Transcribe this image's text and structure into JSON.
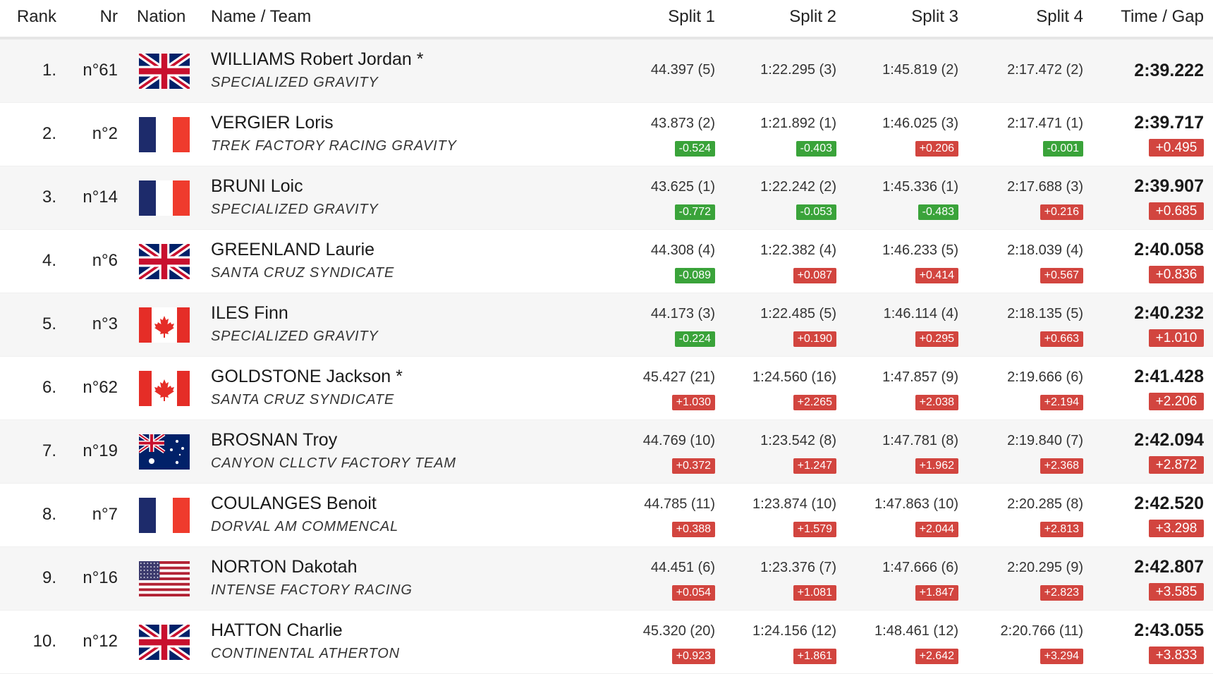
{
  "headers": {
    "rank": "Rank",
    "nr": "Nr",
    "nation": "Nation",
    "name_team": "Name / Team",
    "split1": "Split 1",
    "split2": "Split 2",
    "split3": "Split 3",
    "split4": "Split 4",
    "time_gap": "Time / Gap"
  },
  "colors": {
    "gain_badge": "#3aa33a",
    "loss_badge": "#d2453f",
    "row_stripe": "#f6f6f6"
  },
  "rows": [
    {
      "rank": "1.",
      "nr": "n°61",
      "flag": "gb-flag-icon",
      "name": "WILLIAMS Robert Jordan *",
      "team": "SPECIALIZED GRAVITY",
      "s1": "44.397 (5)",
      "s2": "1:22.295 (3)",
      "s3": "1:45.819 (2)",
      "s4": "2:17.472 (2)",
      "d1": "",
      "d2": "",
      "d3": "",
      "d4": "",
      "time": "2:39.222",
      "gap": ""
    },
    {
      "rank": "2.",
      "nr": "n°2",
      "flag": "fr-flag-icon",
      "name": "VERGIER Loris",
      "team": "TREK FACTORY RACING GRAVITY",
      "s1": "43.873 (2)",
      "s2": "1:21.892 (1)",
      "s3": "1:46.025 (3)",
      "s4": "2:17.471 (1)",
      "d1": "-0.524",
      "d2": "-0.403",
      "d3": "+0.206",
      "d4": "-0.001",
      "time": "2:39.717",
      "gap": "+0.495"
    },
    {
      "rank": "3.",
      "nr": "n°14",
      "flag": "fr-flag-icon",
      "name": "BRUNI Loic",
      "team": "SPECIALIZED GRAVITY",
      "s1": "43.625 (1)",
      "s2": "1:22.242 (2)",
      "s3": "1:45.336 (1)",
      "s4": "2:17.688 (3)",
      "d1": "-0.772",
      "d2": "-0.053",
      "d3": "-0.483",
      "d4": "+0.216",
      "time": "2:39.907",
      "gap": "+0.685"
    },
    {
      "rank": "4.",
      "nr": "n°6",
      "flag": "gb-flag-icon",
      "name": "GREENLAND Laurie",
      "team": "SANTA CRUZ SYNDICATE",
      "s1": "44.308 (4)",
      "s2": "1:22.382 (4)",
      "s3": "1:46.233 (5)",
      "s4": "2:18.039 (4)",
      "d1": "-0.089",
      "d2": "+0.087",
      "d3": "+0.414",
      "d4": "+0.567",
      "time": "2:40.058",
      "gap": "+0.836"
    },
    {
      "rank": "5.",
      "nr": "n°3",
      "flag": "ca-flag-icon",
      "name": "ILES Finn",
      "team": "SPECIALIZED GRAVITY",
      "s1": "44.173 (3)",
      "s2": "1:22.485 (5)",
      "s3": "1:46.114 (4)",
      "s4": "2:18.135 (5)",
      "d1": "-0.224",
      "d2": "+0.190",
      "d3": "+0.295",
      "d4": "+0.663",
      "time": "2:40.232",
      "gap": "+1.010"
    },
    {
      "rank": "6.",
      "nr": "n°62",
      "flag": "ca-flag-icon",
      "name": "GOLDSTONE Jackson *",
      "team": "SANTA CRUZ SYNDICATE",
      "s1": "45.427 (21)",
      "s2": "1:24.560 (16)",
      "s3": "1:47.857 (9)",
      "s4": "2:19.666 (6)",
      "d1": "+1.030",
      "d2": "+2.265",
      "d3": "+2.038",
      "d4": "+2.194",
      "time": "2:41.428",
      "gap": "+2.206"
    },
    {
      "rank": "7.",
      "nr": "n°19",
      "flag": "au-flag-icon",
      "name": "BROSNAN Troy",
      "team": "CANYON CLLCTV FACTORY TEAM",
      "s1": "44.769 (10)",
      "s2": "1:23.542 (8)",
      "s3": "1:47.781 (8)",
      "s4": "2:19.840 (7)",
      "d1": "+0.372",
      "d2": "+1.247",
      "d3": "+1.962",
      "d4": "+2.368",
      "time": "2:42.094",
      "gap": "+2.872"
    },
    {
      "rank": "8.",
      "nr": "n°7",
      "flag": "fr-flag-icon",
      "name": "COULANGES Benoit",
      "team": "DORVAL AM COMMENCAL",
      "s1": "44.785 (11)",
      "s2": "1:23.874 (10)",
      "s3": "1:47.863 (10)",
      "s4": "2:20.285 (8)",
      "d1": "+0.388",
      "d2": "+1.579",
      "d3": "+2.044",
      "d4": "+2.813",
      "time": "2:42.520",
      "gap": "+3.298"
    },
    {
      "rank": "9.",
      "nr": "n°16",
      "flag": "us-flag-icon",
      "name": "NORTON Dakotah",
      "team": "INTENSE FACTORY RACING",
      "s1": "44.451 (6)",
      "s2": "1:23.376 (7)",
      "s3": "1:47.666 (6)",
      "s4": "2:20.295 (9)",
      "d1": "+0.054",
      "d2": "+1.081",
      "d3": "+1.847",
      "d4": "+2.823",
      "time": "2:42.807",
      "gap": "+3.585"
    },
    {
      "rank": "10.",
      "nr": "n°12",
      "flag": "gb-flag-icon",
      "name": "HATTON Charlie",
      "team": "CONTINENTAL ATHERTON",
      "s1": "45.320 (20)",
      "s2": "1:24.156 (12)",
      "s3": "1:48.461 (12)",
      "s4": "2:20.766 (11)",
      "d1": "+0.923",
      "d2": "+1.861",
      "d3": "+2.642",
      "d4": "+3.294",
      "time": "2:43.055",
      "gap": "+3.833"
    }
  ]
}
